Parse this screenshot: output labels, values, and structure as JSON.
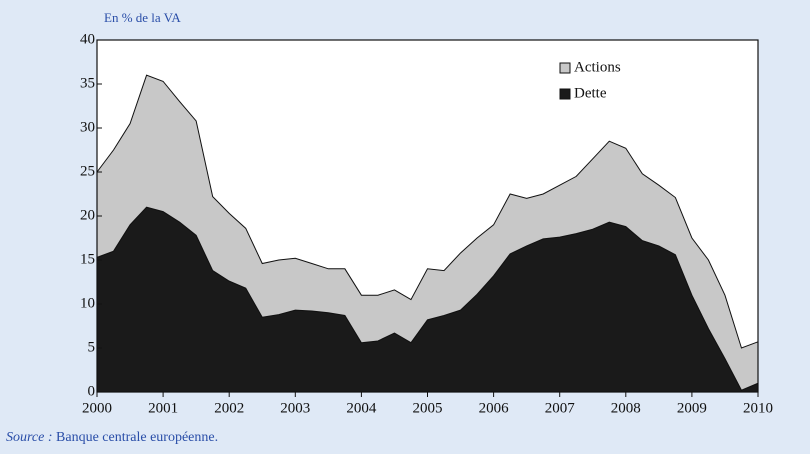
{
  "chart_data": {
    "type": "stacked-area",
    "y_axis_label": "En % de la VA",
    "x": [
      2000,
      2000.25,
      2000.5,
      2000.75,
      2001,
      2001.25,
      2001.5,
      2001.75,
      2002,
      2002.25,
      2002.5,
      2002.75,
      2003,
      2003.25,
      2003.5,
      2003.75,
      2004,
      2004.25,
      2004.5,
      2004.75,
      2005,
      2005.25,
      2005.5,
      2005.75,
      2006,
      2006.25,
      2006.5,
      2006.75,
      2007,
      2007.25,
      2007.5,
      2007.75,
      2008,
      2008.25,
      2008.5,
      2008.75,
      2009,
      2009.25,
      2009.5,
      2009.75,
      2010
    ],
    "series": [
      {
        "name": "Dette",
        "color": "#1a1a1a",
        "values": [
          15.3,
          16,
          19,
          21,
          20.5,
          19.3,
          17.8,
          13.8,
          12.6,
          11.8,
          8.5,
          8.8,
          9.3,
          9.2,
          9,
          8.7,
          5.6,
          5.8,
          6.7,
          5.6,
          8.2,
          8.7,
          9.3,
          11.1,
          13.2,
          15.7,
          16.6,
          17.4,
          17.6,
          18,
          18.5,
          19.3,
          18.8,
          17.2,
          16.6,
          15.6,
          11,
          7.2,
          3.8,
          0.2,
          1
        ]
      },
      {
        "name": "Actions",
        "color": "#c8c8c8",
        "values": [
          9.7,
          11.5,
          11.5,
          15,
          14.8,
          13.7,
          13,
          8.4,
          7.7,
          6.8,
          6.1,
          6.2,
          5.9,
          5.4,
          5,
          5.3,
          5.4,
          5.2,
          4.9,
          4.9,
          5.8,
          5.1,
          6.5,
          6.4,
          5.8,
          6.8,
          5.4,
          5.1,
          5.9,
          6.5,
          8,
          9.2,
          8.9,
          7.6,
          6.9,
          6.5,
          6.5,
          7.8,
          7.2,
          4.8,
          4.7
        ]
      }
    ],
    "xlim": [
      2000,
      2010
    ],
    "xticks": [
      2000,
      2001,
      2002,
      2003,
      2004,
      2005,
      2006,
      2007,
      2008,
      2009,
      2010
    ],
    "ylim": [
      0,
      40
    ],
    "yticks": [
      0,
      5,
      10,
      15,
      20,
      25,
      30,
      35,
      40
    ],
    "legend": "top right",
    "source_label": "Source :",
    "source_text": "Banque centrale européenne."
  }
}
